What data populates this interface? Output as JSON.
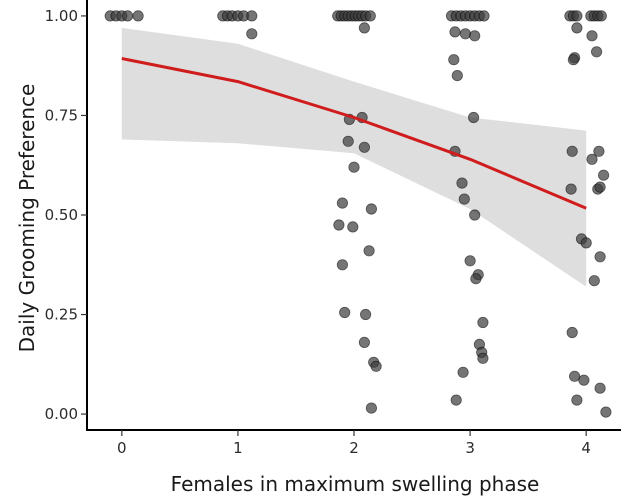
{
  "chart_data": {
    "type": "scatter",
    "title": "",
    "xlabel": "Females in maximum swelling phase",
    "ylabel": "Daily Grooming Preference",
    "xlim": [
      -0.3,
      4.3
    ],
    "ylim": [
      -0.04,
      1.04
    ],
    "grid": false,
    "x_ticks": [
      {
        "value": 0,
        "label": "0"
      },
      {
        "value": 1,
        "label": "1"
      },
      {
        "value": 2,
        "label": "2"
      },
      {
        "value": 3,
        "label": "3"
      },
      {
        "value": 4,
        "label": "4"
      }
    ],
    "y_ticks": [
      {
        "value": 0.0,
        "label": "0.00"
      },
      {
        "value": 0.25,
        "label": "0.25"
      },
      {
        "value": 0.5,
        "label": "0.50"
      },
      {
        "value": 0.75,
        "label": "0.75"
      },
      {
        "value": 1.0,
        "label": "1.00"
      }
    ],
    "colors": {
      "fit_line": "#d01c1c",
      "ribbon": "#dedede",
      "points": "#3a3a3a",
      "axis": "#000000"
    },
    "fit_line": {
      "x": [
        0,
        1,
        2,
        3,
        4
      ],
      "y": [
        0.893,
        0.835,
        0.745,
        0.64,
        0.517
      ]
    },
    "confidence_band": {
      "x": [
        0,
        1,
        2,
        3,
        4
      ],
      "lower": [
        0.69,
        0.68,
        0.655,
        0.515,
        0.32
      ],
      "upper": [
        0.97,
        0.93,
        0.835,
        0.745,
        0.712
      ]
    },
    "points": [
      {
        "x": -0.1,
        "y": 1.0
      },
      {
        "x": -0.05,
        "y": 1.0
      },
      {
        "x": 0.0,
        "y": 1.0
      },
      {
        "x": 0.05,
        "y": 1.0
      },
      {
        "x": 0.14,
        "y": 1.0
      },
      {
        "x": 0.87,
        "y": 1.0
      },
      {
        "x": 0.91,
        "y": 1.0
      },
      {
        "x": 0.95,
        "y": 1.0
      },
      {
        "x": 1.0,
        "y": 1.0
      },
      {
        "x": 1.05,
        "y": 1.0
      },
      {
        "x": 1.12,
        "y": 1.0
      },
      {
        "x": 1.12,
        "y": 0.955
      },
      {
        "x": 1.86,
        "y": 1.0
      },
      {
        "x": 1.89,
        "y": 1.0
      },
      {
        "x": 1.92,
        "y": 1.0
      },
      {
        "x": 1.95,
        "y": 1.0
      },
      {
        "x": 1.98,
        "y": 1.0
      },
      {
        "x": 2.01,
        "y": 1.0
      },
      {
        "x": 2.04,
        "y": 1.0
      },
      {
        "x": 2.07,
        "y": 1.0
      },
      {
        "x": 2.1,
        "y": 1.0
      },
      {
        "x": 2.14,
        "y": 1.0
      },
      {
        "x": 2.09,
        "y": 0.97
      },
      {
        "x": 1.96,
        "y": 0.74
      },
      {
        "x": 2.07,
        "y": 0.745
      },
      {
        "x": 1.95,
        "y": 0.685
      },
      {
        "x": 2.09,
        "y": 0.67
      },
      {
        "x": 2.0,
        "y": 0.62
      },
      {
        "x": 1.9,
        "y": 0.53
      },
      {
        "x": 2.15,
        "y": 0.515
      },
      {
        "x": 1.87,
        "y": 0.475
      },
      {
        "x": 1.99,
        "y": 0.47
      },
      {
        "x": 2.13,
        "y": 0.41
      },
      {
        "x": 1.9,
        "y": 0.375
      },
      {
        "x": 1.92,
        "y": 0.255
      },
      {
        "x": 2.1,
        "y": 0.25
      },
      {
        "x": 2.09,
        "y": 0.18
      },
      {
        "x": 2.17,
        "y": 0.13
      },
      {
        "x": 2.19,
        "y": 0.12
      },
      {
        "x": 2.15,
        "y": 0.015
      },
      {
        "x": 2.84,
        "y": 1.0
      },
      {
        "x": 2.88,
        "y": 1.0
      },
      {
        "x": 2.92,
        "y": 1.0
      },
      {
        "x": 2.96,
        "y": 1.0
      },
      {
        "x": 3.0,
        "y": 1.0
      },
      {
        "x": 3.04,
        "y": 1.0
      },
      {
        "x": 3.08,
        "y": 1.0
      },
      {
        "x": 3.12,
        "y": 1.0
      },
      {
        "x": 2.87,
        "y": 0.96
      },
      {
        "x": 2.96,
        "y": 0.955
      },
      {
        "x": 3.04,
        "y": 0.95
      },
      {
        "x": 2.86,
        "y": 0.89
      },
      {
        "x": 2.89,
        "y": 0.85
      },
      {
        "x": 3.03,
        "y": 0.745
      },
      {
        "x": 2.87,
        "y": 0.66
      },
      {
        "x": 2.93,
        "y": 0.58
      },
      {
        "x": 2.95,
        "y": 0.54
      },
      {
        "x": 3.04,
        "y": 0.5
      },
      {
        "x": 3.0,
        "y": 0.385
      },
      {
        "x": 3.07,
        "y": 0.35
      },
      {
        "x": 3.05,
        "y": 0.34
      },
      {
        "x": 3.11,
        "y": 0.23
      },
      {
        "x": 3.08,
        "y": 0.175
      },
      {
        "x": 3.1,
        "y": 0.155
      },
      {
        "x": 3.11,
        "y": 0.14
      },
      {
        "x": 2.94,
        "y": 0.105
      },
      {
        "x": 2.88,
        "y": 0.035
      },
      {
        "x": 3.86,
        "y": 1.0
      },
      {
        "x": 3.89,
        "y": 1.0
      },
      {
        "x": 3.92,
        "y": 1.0
      },
      {
        "x": 4.04,
        "y": 1.0
      },
      {
        "x": 4.07,
        "y": 1.0
      },
      {
        "x": 4.1,
        "y": 1.0
      },
      {
        "x": 4.13,
        "y": 1.0
      },
      {
        "x": 3.92,
        "y": 0.97
      },
      {
        "x": 4.05,
        "y": 0.95
      },
      {
        "x": 4.09,
        "y": 0.91
      },
      {
        "x": 3.9,
        "y": 0.895
      },
      {
        "x": 3.89,
        "y": 0.89
      },
      {
        "x": 3.88,
        "y": 0.66
      },
      {
        "x": 4.11,
        "y": 0.66
      },
      {
        "x": 4.05,
        "y": 0.64
      },
      {
        "x": 4.15,
        "y": 0.6
      },
      {
        "x": 4.1,
        "y": 0.565
      },
      {
        "x": 4.12,
        "y": 0.57
      },
      {
        "x": 3.87,
        "y": 0.565
      },
      {
        "x": 3.96,
        "y": 0.44
      },
      {
        "x": 4.0,
        "y": 0.43
      },
      {
        "x": 4.12,
        "y": 0.395
      },
      {
        "x": 4.07,
        "y": 0.335
      },
      {
        "x": 3.88,
        "y": 0.205
      },
      {
        "x": 3.9,
        "y": 0.095
      },
      {
        "x": 3.98,
        "y": 0.085
      },
      {
        "x": 4.12,
        "y": 0.065
      },
      {
        "x": 3.92,
        "y": 0.035
      },
      {
        "x": 4.17,
        "y": 0.005
      }
    ]
  }
}
